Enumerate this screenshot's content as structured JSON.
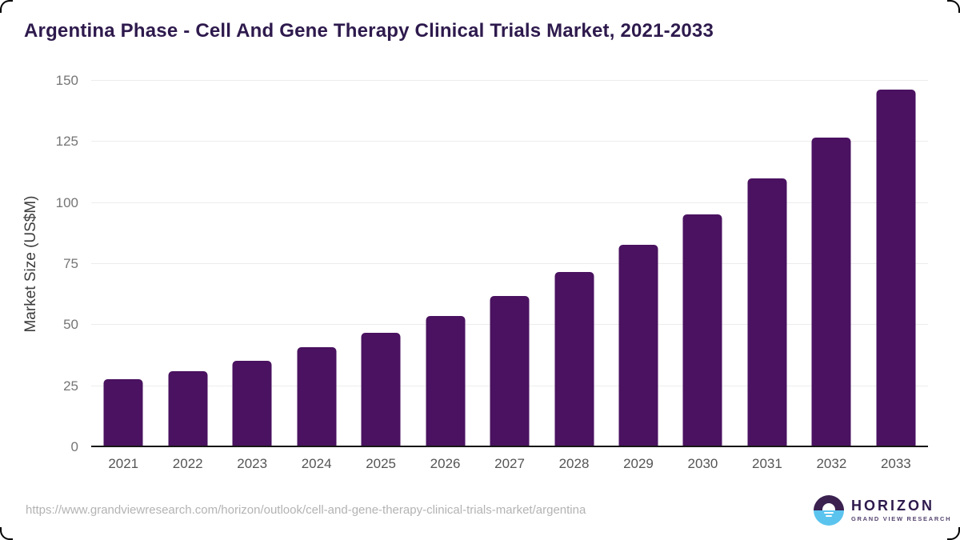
{
  "title": "Argentina Phase - Cell And Gene Therapy Clinical Trials Market, 2021-2033",
  "chart_data": {
    "type": "bar",
    "title": "Argentina Phase - Cell And Gene Therapy Clinical Trials Market, 2021-2033",
    "categories": [
      "2021",
      "2022",
      "2023",
      "2024",
      "2025",
      "2026",
      "2027",
      "2028",
      "2029",
      "2030",
      "2031",
      "2032",
      "2033"
    ],
    "values": [
      27.8,
      31.0,
      35.4,
      40.8,
      46.9,
      53.8,
      61.9,
      71.6,
      82.8,
      95.2,
      110.0,
      126.9,
      146.5
    ],
    "xlabel": "",
    "ylabel": "Market Size (US$M)",
    "ylim": [
      0,
      150
    ],
    "yticks": [
      0,
      25,
      50,
      75,
      100,
      125,
      150
    ],
    "grid": true,
    "legend": false,
    "bar_color": "#4a1260"
  },
  "footer": {
    "source_url": "https://www.grandviewresearch.com/horizon/outlook/cell-and-gene-therapy-clinical-trials-market/argentina",
    "logo_title": "HORIZON",
    "logo_subtitle": "GRAND VIEW RESEARCH"
  },
  "colors": {
    "bar": "#4a1260",
    "title_text": "#2e1a4d",
    "axis_label": "#3d3d3d",
    "tick_label": "#757575",
    "x_label": "#555555",
    "gridline": "#ececec",
    "axis_line": "#161616",
    "url_text": "#b3b3b3",
    "logo_purple": "#3a2150",
    "logo_blue": "#5bc4ee"
  }
}
